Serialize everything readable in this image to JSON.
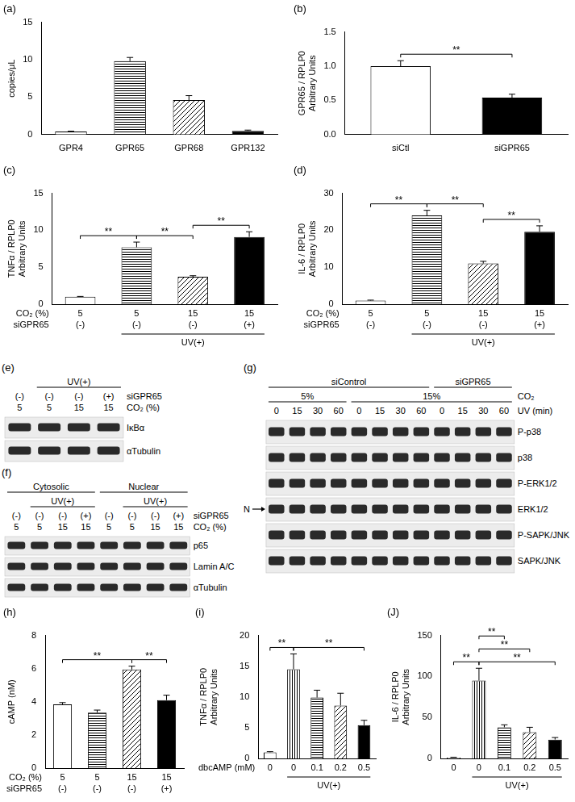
{
  "chart_data": [
    {
      "type": "bar",
      "title": "(a)",
      "categories": [
        "GPR4",
        "GPR65",
        "GPR68",
        "GPR132"
      ],
      "values": [
        0.4,
        9.8,
        4.6,
        0.5
      ],
      "errors": [
        0.05,
        0.5,
        0.6,
        0.1
      ],
      "colors": [
        "#ffffff",
        "#ffffff",
        "#ffffff",
        "#000000"
      ],
      "ylabel": "copies/μL",
      "ylim": [
        0,
        15
      ],
      "yticks": [
        0,
        5,
        10,
        15
      ],
      "grid": false
    },
    {
      "type": "bar",
      "title": "(b)",
      "categories": [
        "siCtl",
        "siGPR65"
      ],
      "values": [
        1.0,
        0.54
      ],
      "errors": [
        0.08,
        0.05
      ],
      "colors": [
        "#ffffff",
        "#000000"
      ],
      "ylabel": [
        "GPR65 / RPLP0",
        "Arbitrary Units"
      ],
      "ylim": [
        0,
        1.5
      ],
      "yticks": [
        {
          "value": 0,
          "label": "0.0"
        },
        {
          "value": 0.5,
          "label": "0.5"
        },
        {
          "value": 1,
          "label": "1.0"
        },
        {
          "value": 1.5,
          "label": "1.5"
        }
      ],
      "grid": false,
      "significance": [
        {
          "from": 0,
          "to": 1,
          "label": "**"
        }
      ]
    },
    {
      "type": "bar",
      "title": "(c)",
      "categories": [
        null,
        null,
        null,
        null
      ],
      "values": [
        1.0,
        7.7,
        3.7,
        9.1
      ],
      "errors": [
        0.05,
        0.7,
        0.15,
        0.7
      ],
      "colors": [
        "#ffffff",
        "#ffffff",
        "#ffffff",
        "#000000"
      ],
      "ylabel": [
        "TNFα / RPLP0",
        "Arbitrary Units"
      ],
      "ylim": [
        0,
        15
      ],
      "yticks": [
        0,
        5,
        10,
        15
      ],
      "grid": false,
      "x_rows": [
        {
          "label": "CO₂ (%)",
          "values": [
            "5",
            "5",
            "15",
            "15"
          ]
        },
        {
          "label": "siGPR65",
          "values": [
            "(-)",
            "(-)",
            "(-)",
            "(+)"
          ]
        }
      ],
      "spans": [
        {
          "label": "UV(+)",
          "from": 1,
          "to": 3
        }
      ],
      "significance": [
        {
          "from": 0,
          "to": 1,
          "label": "**"
        },
        {
          "from": 1,
          "to": 2,
          "label": "**"
        },
        {
          "from": 2,
          "to": 3,
          "label": "**"
        }
      ]
    },
    {
      "type": "bar",
      "title": "(d)",
      "categories": [
        null,
        null,
        null,
        null
      ],
      "values": [
        1.0,
        24.0,
        11.0,
        19.6
      ],
      "errors": [
        0.1,
        1.4,
        0.6,
        1.6
      ],
      "colors": [
        "#ffffff",
        "#ffffff",
        "#ffffff",
        "#000000"
      ],
      "ylabel": [
        "IL-6 / RPLP0",
        "Arbitrary Units"
      ],
      "ylim": [
        0,
        30
      ],
      "yticks": [
        0,
        10,
        20,
        30
      ],
      "grid": false,
      "x_rows": [
        {
          "label": "CO₂ (%)",
          "values": [
            "5",
            "5",
            "15",
            "15"
          ]
        },
        {
          "label": "siGPR65",
          "values": [
            "(-)",
            "(-)",
            "(-)",
            "(+)"
          ]
        }
      ],
      "spans": [
        {
          "label": "UV(+)",
          "from": 1,
          "to": 3
        }
      ],
      "significance": [
        {
          "from": 0,
          "to": 1,
          "label": "**"
        },
        {
          "from": 1,
          "to": 2,
          "label": "**"
        },
        {
          "from": 2,
          "to": 3,
          "label": "**"
        }
      ]
    },
    {
      "type": "bar",
      "title": "(h)",
      "categories": [
        null,
        null,
        null,
        null
      ],
      "values": [
        3.85,
        3.35,
        5.95,
        4.1
      ],
      "errors": [
        0.1,
        0.15,
        0.2,
        0.3
      ],
      "colors": [
        "#ffffff",
        "#ffffff",
        "#ffffff",
        "#000000"
      ],
      "ylabel": "cAMP (nM)",
      "ylim": [
        0,
        8
      ],
      "yticks": [
        0,
        2,
        4,
        6,
        8
      ],
      "grid": false,
      "x_rows": [
        {
          "label": "CO₂ (%)",
          "values": [
            "5",
            "5",
            "15",
            "15"
          ]
        },
        {
          "label": "siGPR65",
          "values": [
            "(-)",
            "(-)",
            "(-)",
            "(+)"
          ]
        }
      ],
      "significance": [
        {
          "from": 0,
          "to": 2,
          "label": "**"
        },
        {
          "from": 2,
          "to": 3,
          "label": "**"
        }
      ]
    },
    {
      "type": "bar",
      "title": "(i)",
      "categories": [
        null,
        null,
        null,
        null,
        null
      ],
      "values": [
        1.0,
        14.5,
        9.9,
        8.6,
        5.4
      ],
      "errors": [
        0.1,
        2.5,
        1.2,
        2.0,
        0.8
      ],
      "colors": [
        "#ffffff",
        "#ffffff",
        "#ffffff",
        "#ffffff",
        "#000000"
      ],
      "ylabel": [
        "TNFα / RPLP0",
        "Arbitrary Units"
      ],
      "ylim": [
        0,
        20
      ],
      "yticks": [
        0,
        5,
        10,
        15,
        20
      ],
      "grid": false,
      "x_rows": [
        {
          "label": "dbcAMP (mM)",
          "values": [
            "0",
            "0",
            "0.1",
            "0.2",
            "0.5"
          ]
        }
      ],
      "spans": [
        {
          "label": "UV(+)",
          "from": 1,
          "to": 4
        }
      ],
      "significance": [
        {
          "from": 0,
          "to": 1,
          "label": "**"
        },
        {
          "from": 1,
          "to": 4,
          "label": "**"
        }
      ]
    },
    {
      "type": "bar",
      "title": "(J)",
      "categories": [
        null,
        null,
        null,
        null,
        null
      ],
      "values": [
        1.0,
        95,
        38,
        32,
        23
      ],
      "errors": [
        0.5,
        15,
        3,
        6,
        2.5
      ],
      "colors": [
        "#ffffff",
        "#ffffff",
        "#ffffff",
        "#ffffff",
        "#000000"
      ],
      "ylabel": [
        "IL-6 / RPLP0",
        "Arbitrary Units"
      ],
      "ylim": [
        0,
        150
      ],
      "yticks": [
        0,
        50,
        100,
        150
      ],
      "grid": false,
      "x_rows": [
        {
          "values": [
            "0",
            "0",
            "0.1",
            "0.2",
            "0.5"
          ]
        }
      ],
      "spans": [
        {
          "label": "UV(+)",
          "from": 1,
          "to": 4
        }
      ],
      "significance": [
        {
          "from": 0,
          "to": 1,
          "label": "**"
        },
        {
          "from": 1,
          "to": 4,
          "label": "**"
        },
        {
          "from": 1,
          "to": 3,
          "label": "**"
        },
        {
          "from": 1,
          "to": 2,
          "label": "**"
        }
      ]
    }
  ],
  "blots": [
    {
      "title": "(e)",
      "headers": [
        {
          "spans": [
            {
              "label": "UV(+)",
              "from": 1,
              "to": 3
            }
          ]
        }
      ],
      "rows": [
        {
          "label": "siGPR65",
          "values": [
            "(-)",
            "(-)",
            "(-)",
            "(+)"
          ]
        },
        {
          "label": "CO₂ (%)",
          "values": [
            "5",
            "5",
            "15",
            "15"
          ]
        }
      ],
      "bands": [
        "IκBα",
        "αTubulin"
      ]
    },
    {
      "title": "(f)",
      "headers": [
        {
          "spans": [
            {
              "label": "Cytosolic",
              "from": 0,
              "to": 3
            },
            {
              "label": "Nuclear",
              "from": 4,
              "to": 7
            }
          ]
        },
        {
          "spans": [
            {
              "label": "UV(+)",
              "from": 1,
              "to": 3
            },
            {
              "label": "UV(+)",
              "from": 5,
              "to": 7
            }
          ]
        }
      ],
      "rows": [
        {
          "label": "siGPR65",
          "values": [
            "(-)",
            "(-)",
            "(-)",
            "(+)",
            "(-)",
            "(-)",
            "(-)",
            "(+)"
          ]
        },
        {
          "label": "CO₂ (%)",
          "values": [
            "5",
            "5",
            "15",
            "15",
            "5",
            "5",
            "15",
            "15"
          ]
        }
      ],
      "bands": [
        "p65",
        "Lamin A/C",
        "αTubulin"
      ]
    },
    {
      "title": "(g)",
      "headers": [
        {
          "spans": [
            {
              "label": "siControl",
              "from": 0,
              "to": 7
            },
            {
              "label": "siGPR65",
              "from": 8,
              "to": 11
            }
          ]
        },
        {
          "label": "CO₂",
          "spans": [
            {
              "label": "5%",
              "from": 0,
              "to": 3
            },
            {
              "label": "15%",
              "from": 4,
              "to": 11
            }
          ]
        }
      ],
      "rows": [
        {
          "label": "UV (min)",
          "values": [
            "0",
            "15",
            "30",
            "60",
            "0",
            "15",
            "30",
            "60",
            "0",
            "15",
            "30",
            "60"
          ]
        }
      ],
      "bands": [
        "P-p38",
        "p38",
        "P-ERK1/2",
        "ERK1/2",
        "P-SAPK/JNK",
        "SAPK/JNK"
      ],
      "markers": [
        {
          "label": "N",
          "band": 3
        }
      ]
    }
  ]
}
